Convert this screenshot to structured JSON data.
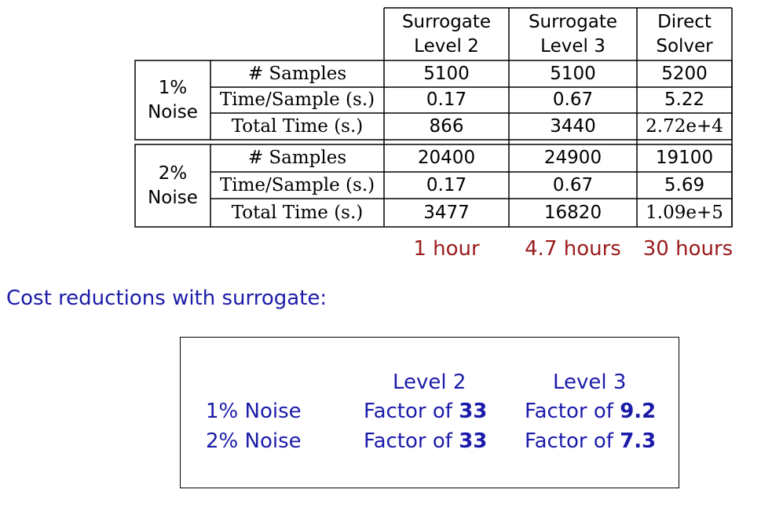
{
  "table": {
    "header": {
      "col1": [
        "Surrogate",
        "Level 2"
      ],
      "col2": [
        "Surrogate",
        "Level 3"
      ],
      "col3": [
        "Direct",
        "Solver"
      ]
    },
    "groups": [
      {
        "label": [
          "1%",
          "Noise"
        ],
        "rows": [
          {
            "metric": "# Samples",
            "values": [
              "5100",
              "5100",
              "5200"
            ]
          },
          {
            "metric": "Time/Sample (s.)",
            "values": [
              "0.17",
              "0.67",
              "5.22"
            ]
          },
          {
            "metric": "Total Time (s.)",
            "values": [
              "866",
              "3440",
              "2.72e+4"
            ]
          }
        ]
      },
      {
        "label": [
          "2%",
          "Noise"
        ],
        "rows": [
          {
            "metric": "# Samples",
            "values": [
              "20400",
              "24900",
              "19100"
            ]
          },
          {
            "metric": "Time/Sample (s.)",
            "values": [
              "0.17",
              "0.67",
              "5.69"
            ]
          },
          {
            "metric": "Total Time (s.)",
            "values": [
              "3477",
              "16820",
              "1.09e+5"
            ]
          }
        ]
      }
    ],
    "durations": [
      "1 hour",
      "4.7 hours",
      "30 hours"
    ]
  },
  "summary": {
    "heading": "Cost reductions with surrogate:",
    "col_headers": [
      "Level 2",
      "Level 3"
    ],
    "factor_prefix": "Factor of",
    "rows": [
      {
        "label": "1% Noise",
        "level2": "33",
        "level3": "9.2"
      },
      {
        "label": "2% Noise",
        "level2": "33",
        "level3": "7.3"
      }
    ]
  }
}
